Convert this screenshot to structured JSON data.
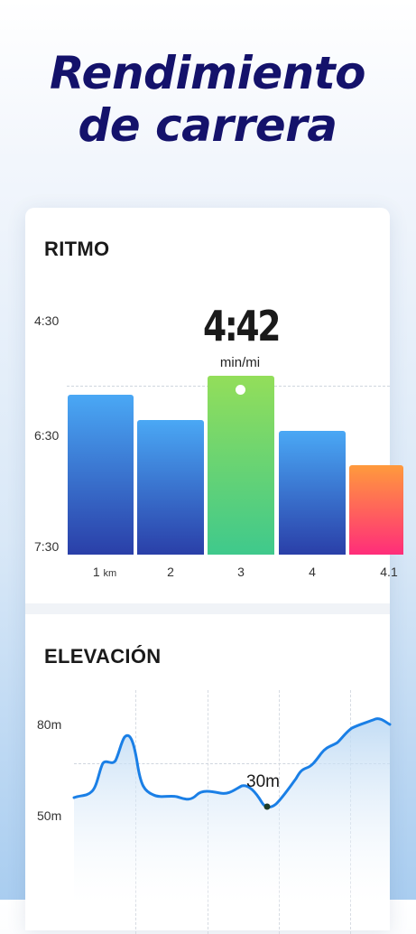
{
  "headline": {
    "line1": "Rendimiento",
    "line2": "de carrera"
  },
  "pace": {
    "title": "RITMO",
    "y_ticks": [
      "4:30",
      "6:30",
      "7:30"
    ],
    "highlight_value": "4:42",
    "highlight_unit": "min/mi",
    "x_first_label": "1",
    "x_first_unit": "km",
    "x_labels": [
      "2",
      "3",
      "4",
      "4.1"
    ],
    "bar_colors": {
      "blue_top": "#4aa8f5",
      "blue_bottom": "#2a3fa8",
      "green_top": "#93de5a",
      "green_bottom": "#3fc98c",
      "orange_top": "#ff9a3c",
      "orange_bottom": "#ff2d7a"
    }
  },
  "elevation": {
    "title": "ELEVACIÓN",
    "y_ticks": [
      "80m",
      "50m"
    ],
    "marker_label": "30m",
    "line_color": "#1a7fe6"
  },
  "chart_data": [
    {
      "type": "bar",
      "title": "RITMO",
      "categories": [
        "1 km",
        "2",
        "3",
        "4",
        "4.1"
      ],
      "values": [
        "5:53",
        "6:12",
        "4:42",
        "6:20",
        "6:53"
      ],
      "highlighted": "3"
    },
    {
      "type": "area",
      "title": "ELEVACIÓN",
      "y_ticks": [
        "80m",
        "50m"
      ],
      "marker_label": "30m"
    }
  ]
}
